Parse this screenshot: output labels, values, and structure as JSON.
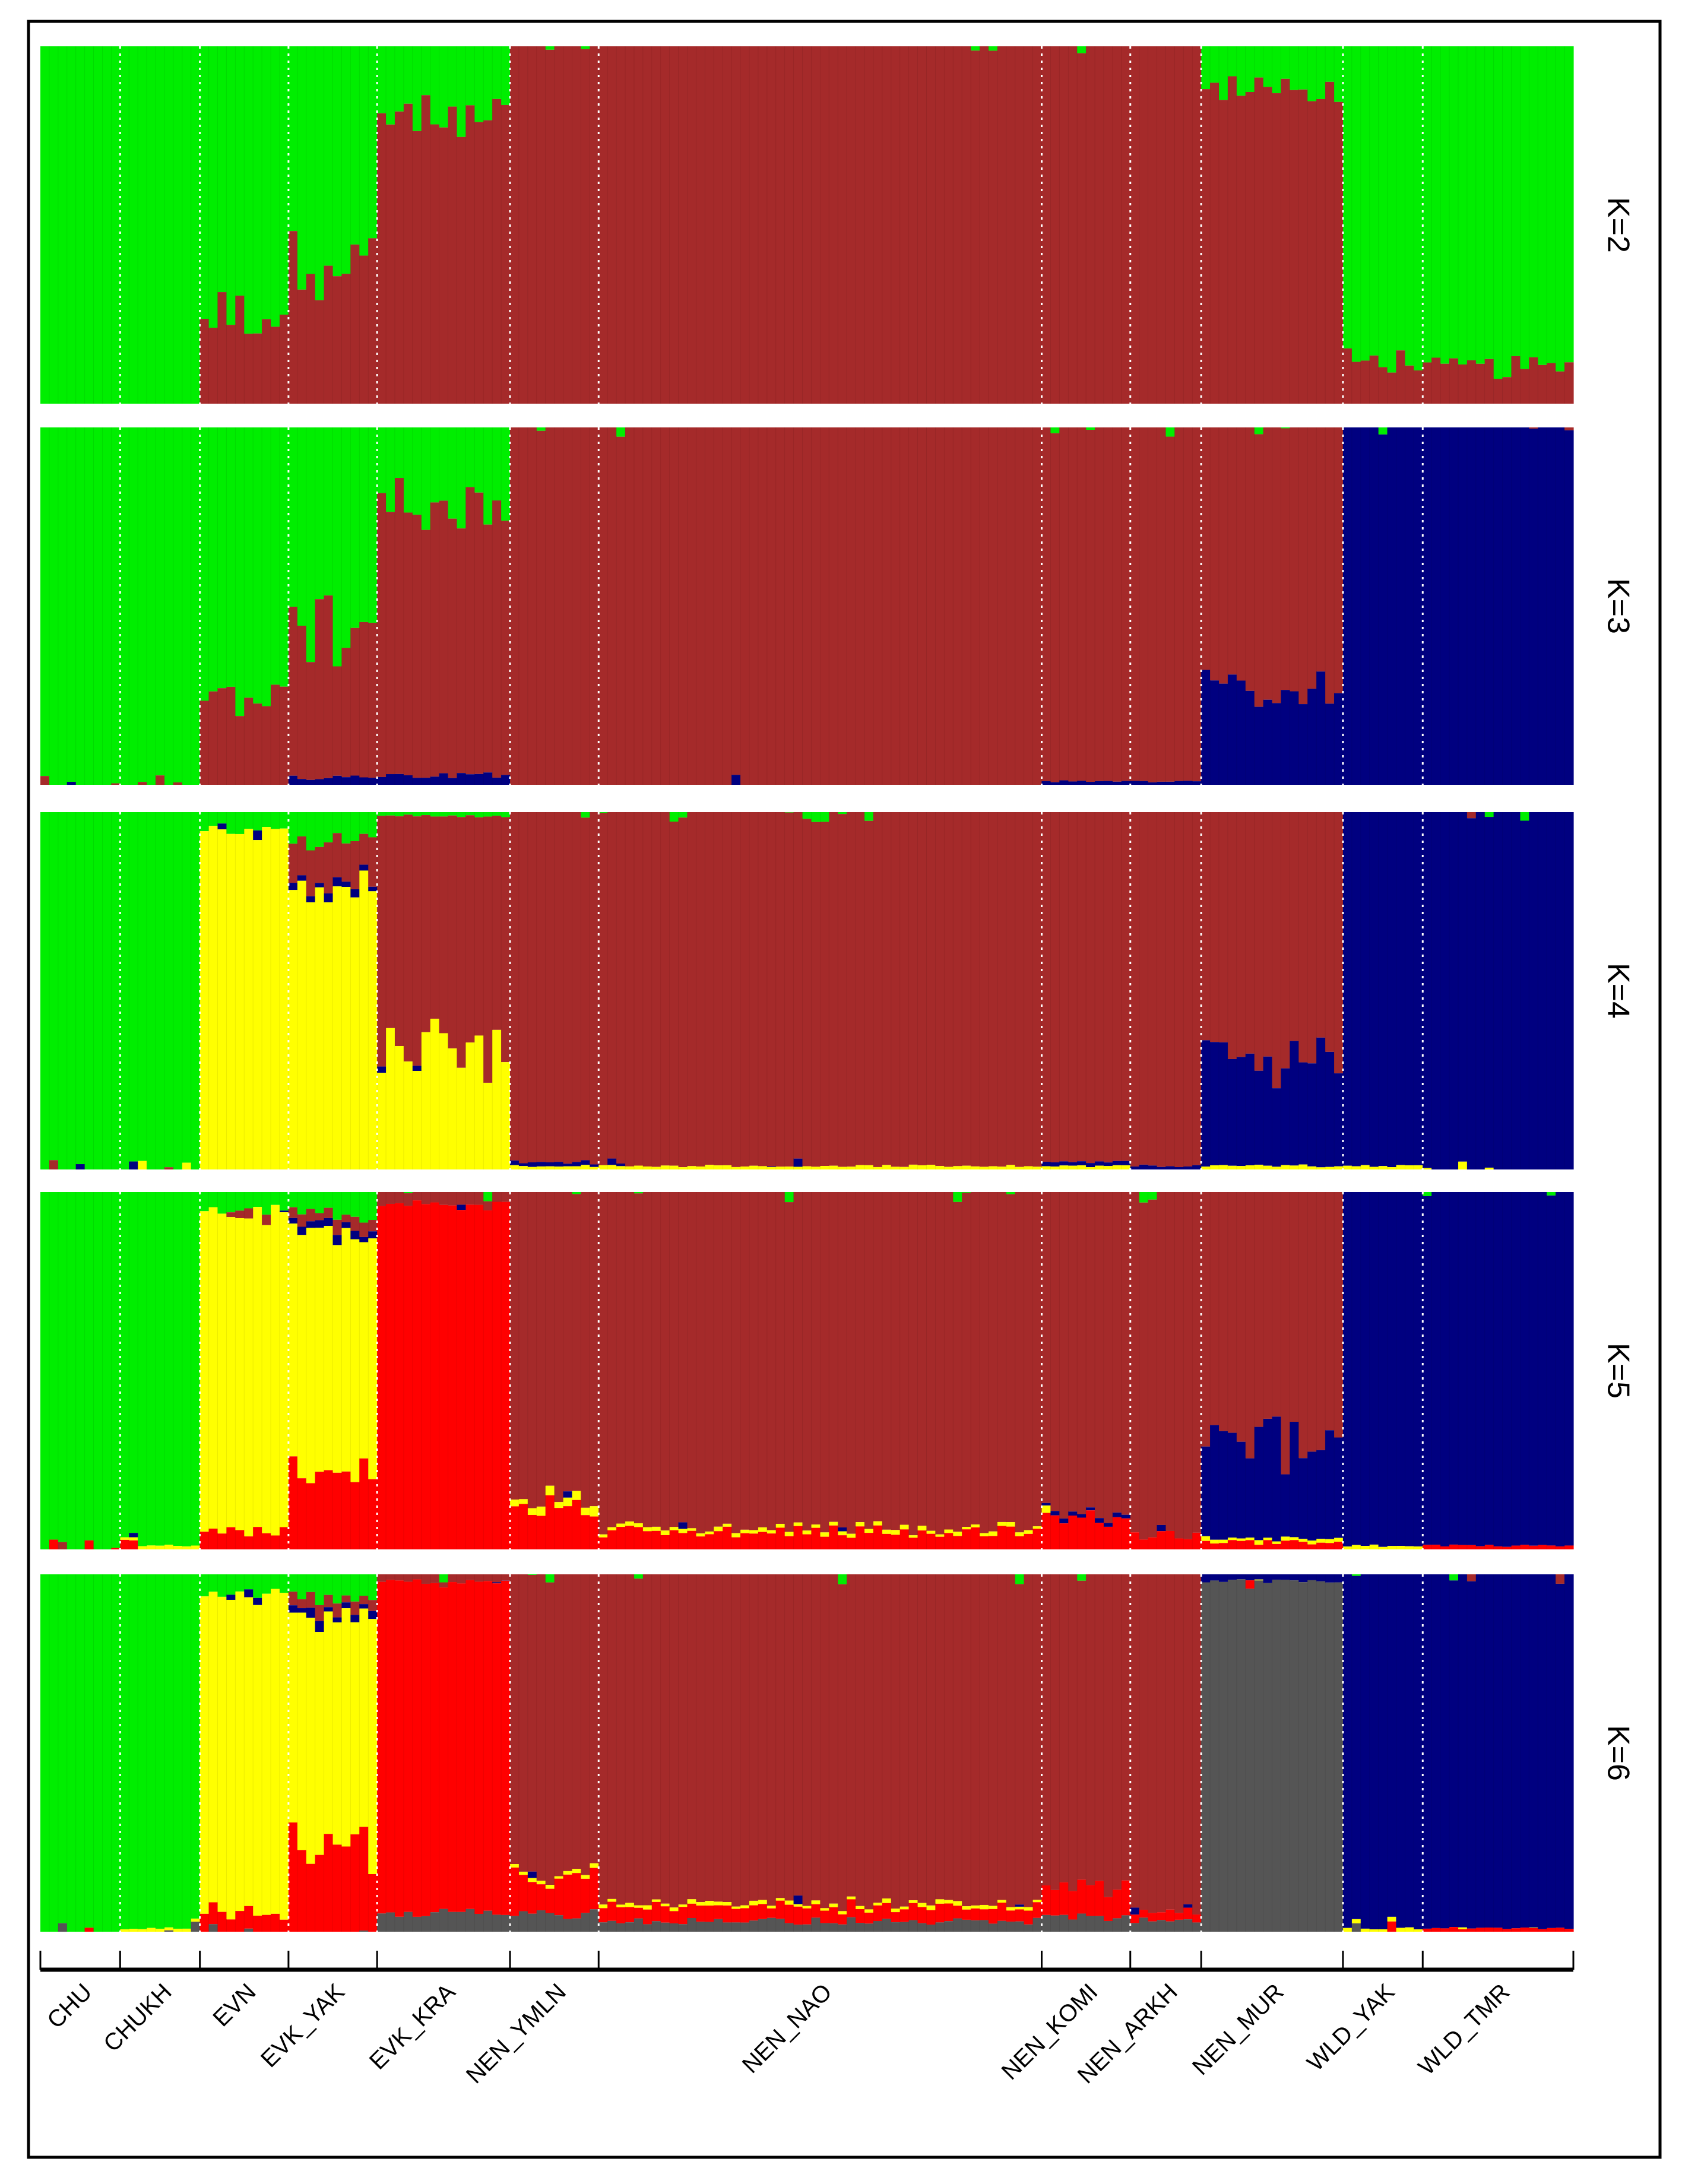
{
  "chart_data": {
    "type": "bar",
    "stacked": true,
    "normalized": true,
    "orientation": "horizontal",
    "ylim": [
      0,
      1
    ],
    "grid": false,
    "legend": "none",
    "colors": {
      "green": "#00ee00",
      "brown": "#a52a2a",
      "navy": "#000080",
      "yellow": "#ffff00",
      "red": "#ff0000",
      "gray": "#555555"
    },
    "groups": [
      {
        "label": "CHU",
        "n": 9
      },
      {
        "label": "CHUKH",
        "n": 9
      },
      {
        "label": "EVN",
        "n": 10
      },
      {
        "label": "EVK_YAK",
        "n": 10
      },
      {
        "label": "EVK_KRA",
        "n": 15
      },
      {
        "label": "NEN_YMLN",
        "n": 10
      },
      {
        "label": "NEN_NAO",
        "n": 50
      },
      {
        "label": "NEN_KOMI",
        "n": 10
      },
      {
        "label": "NEN_ARKH",
        "n": 8
      },
      {
        "label": "NEN_MUR",
        "n": 16
      },
      {
        "label": "WLD_YAK",
        "n": 9
      },
      {
        "label": "WLD_TMR",
        "n": 17
      }
    ],
    "panels": [
      {
        "label": "K=2",
        "series": [
          "green",
          "brown"
        ],
        "group_mean_proportions": {
          "CHU": [
            1.0,
            0.0
          ],
          "CHUKH": [
            1.0,
            0.0
          ],
          "EVN": [
            0.74,
            0.26
          ],
          "EVK_YAK": [
            0.6,
            0.4
          ],
          "EVK_KRA": [
            0.2,
            0.8
          ],
          "NEN_YMLN": [
            0.0,
            1.0
          ],
          "NEN_NAO": [
            0.0,
            1.0
          ],
          "NEN_KOMI": [
            0.0,
            1.0
          ],
          "NEN_ARKH": [
            0.0,
            1.0
          ],
          "NEN_MUR": [
            0.12,
            0.88
          ],
          "WLD_YAK": [
            0.88,
            0.12
          ],
          "WLD_TMR": [
            0.9,
            0.1
          ]
        }
      },
      {
        "label": "K=3",
        "series": [
          "green",
          "brown",
          "navy"
        ],
        "group_mean_proportions": {
          "CHU": [
            1.0,
            0.0,
            0.0
          ],
          "CHUKH": [
            1.0,
            0.0,
            0.0
          ],
          "EVN": [
            0.76,
            0.24,
            0.0
          ],
          "EVK_YAK": [
            0.58,
            0.4,
            0.02
          ],
          "EVK_KRA": [
            0.22,
            0.75,
            0.03
          ],
          "NEN_YMLN": [
            0.0,
            1.0,
            0.0
          ],
          "NEN_NAO": [
            0.0,
            1.0,
            0.0
          ],
          "NEN_KOMI": [
            0.0,
            0.99,
            0.01
          ],
          "NEN_ARKH": [
            0.0,
            0.99,
            0.01
          ],
          "NEN_MUR": [
            0.0,
            0.72,
            0.28
          ],
          "WLD_YAK": [
            0.0,
            0.0,
            1.0
          ],
          "WLD_TMR": [
            0.0,
            0.0,
            1.0
          ]
        }
      },
      {
        "label": "K=4",
        "series": [
          "green",
          "brown",
          "navy",
          "yellow"
        ],
        "group_mean_proportions": {
          "CHU": [
            1.0,
            0.0,
            0.0,
            0.0
          ],
          "CHUKH": [
            1.0,
            0.0,
            0.0,
            0.0
          ],
          "EVN": [
            0.05,
            0.0,
            0.0,
            0.95
          ],
          "EVK_YAK": [
            0.08,
            0.12,
            0.02,
            0.78
          ],
          "EVK_KRA": [
            0.01,
            0.65,
            0.0,
            0.34
          ],
          "NEN_YMLN": [
            0.0,
            0.98,
            0.01,
            0.01
          ],
          "NEN_NAO": [
            0.0,
            0.99,
            0.0,
            0.01
          ],
          "NEN_KOMI": [
            0.0,
            0.98,
            0.01,
            0.01
          ],
          "NEN_ARKH": [
            0.0,
            0.99,
            0.01,
            0.0
          ],
          "NEN_MUR": [
            0.0,
            0.7,
            0.29,
            0.01
          ],
          "WLD_YAK": [
            0.0,
            0.0,
            0.99,
            0.01
          ],
          "WLD_TMR": [
            0.0,
            0.0,
            1.0,
            0.0
          ]
        }
      },
      {
        "label": "K=5",
        "series": [
          "green",
          "brown",
          "navy",
          "yellow",
          "red"
        ],
        "group_mean_proportions": {
          "CHU": [
            1.0,
            0.0,
            0.0,
            0.0,
            0.0
          ],
          "CHUKH": [
            0.99,
            0.0,
            0.0,
            0.01,
            0.0
          ],
          "EVN": [
            0.05,
            0.0,
            0.0,
            0.9,
            0.05
          ],
          "EVK_YAK": [
            0.06,
            0.03,
            0.02,
            0.66,
            0.23
          ],
          "EVK_KRA": [
            0.0,
            0.03,
            0.0,
            0.0,
            0.97
          ],
          "NEN_YMLN": [
            0.0,
            0.86,
            0.0,
            0.02,
            0.12
          ],
          "NEN_NAO": [
            0.0,
            0.94,
            0.0,
            0.01,
            0.05
          ],
          "NEN_KOMI": [
            0.0,
            0.9,
            0.01,
            0.0,
            0.09
          ],
          "NEN_ARKH": [
            0.0,
            0.96,
            0.0,
            0.0,
            0.04
          ],
          "NEN_MUR": [
            0.0,
            0.7,
            0.27,
            0.01,
            0.02
          ],
          "WLD_YAK": [
            0.0,
            0.0,
            0.99,
            0.01,
            0.0
          ],
          "WLD_TMR": [
            0.0,
            0.0,
            0.99,
            0.0,
            0.01
          ]
        }
      },
      {
        "label": "K=6",
        "series": [
          "green",
          "brown",
          "navy",
          "yellow",
          "red",
          "gray"
        ],
        "group_mean_proportions": {
          "CHU": [
            1.0,
            0.0,
            0.0,
            0.0,
            0.0,
            0.0
          ],
          "CHUKH": [
            0.99,
            0.0,
            0.0,
            0.01,
            0.0,
            0.0
          ],
          "EVN": [
            0.05,
            0.0,
            0.0,
            0.9,
            0.05,
            0.0
          ],
          "EVK_YAK": [
            0.06,
            0.03,
            0.02,
            0.66,
            0.23,
            0.0
          ],
          "EVK_KRA": [
            0.0,
            0.02,
            0.0,
            0.0,
            0.93,
            0.05
          ],
          "NEN_YMLN": [
            0.0,
            0.84,
            0.0,
            0.01,
            0.1,
            0.05
          ],
          "NEN_NAO": [
            0.0,
            0.92,
            0.0,
            0.01,
            0.04,
            0.03
          ],
          "NEN_KOMI": [
            0.0,
            0.88,
            0.0,
            0.0,
            0.08,
            0.04
          ],
          "NEN_ARKH": [
            0.0,
            0.94,
            0.0,
            0.0,
            0.03,
            0.03
          ],
          "NEN_MUR": [
            0.0,
            0.0,
            0.02,
            0.0,
            0.0,
            0.98
          ],
          "WLD_YAK": [
            0.0,
            0.0,
            0.99,
            0.01,
            0.0,
            0.0
          ],
          "WLD_TMR": [
            0.0,
            0.0,
            0.99,
            0.0,
            0.01,
            0.0
          ]
        }
      }
    ]
  }
}
